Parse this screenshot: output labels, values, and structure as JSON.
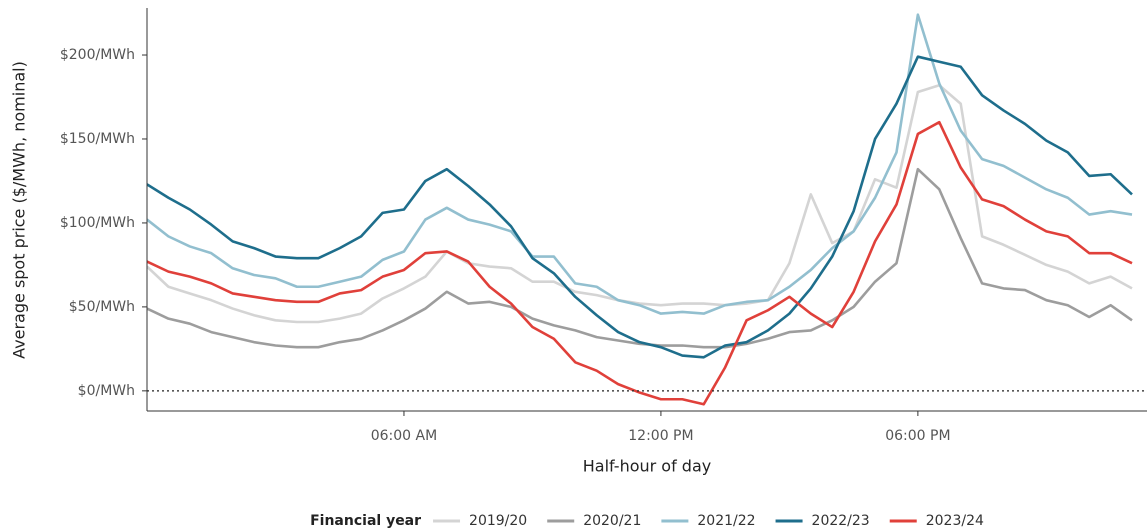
{
  "chart_data": {
    "type": "line",
    "x_label": "Half-hour of day",
    "y_label": "Average spot price ($/MWh, nominal)",
    "legend_title": "Financial year",
    "legend_position": "bottom",
    "x": [
      0,
      0.5,
      1,
      1.5,
      2,
      2.5,
      3,
      3.5,
      4,
      4.5,
      5,
      5.5,
      6,
      6.5,
      7,
      7.5,
      8,
      8.5,
      9,
      9.5,
      10,
      10.5,
      11,
      11.5,
      12,
      12.5,
      13,
      13.5,
      14,
      14.5,
      15,
      15.5,
      16,
      16.5,
      17,
      17.5,
      18,
      18.5,
      19,
      19.5,
      20,
      20.5,
      21,
      21.5,
      22,
      22.5,
      23
    ],
    "xlim": [
      0,
      23.35
    ],
    "xticks": [
      {
        "value": 6,
        "label": "06:00 AM"
      },
      {
        "value": 12,
        "label": "12:00 PM"
      },
      {
        "value": 18,
        "label": "06:00 PM"
      }
    ],
    "ylim": [
      -12,
      228
    ],
    "yticks": [
      {
        "value": 0,
        "label": "$0/MWh"
      },
      {
        "value": 50,
        "label": "$50/MWh"
      },
      {
        "value": 100,
        "label": "$100/MWh"
      },
      {
        "value": 150,
        "label": "$150/MWh"
      },
      {
        "value": 200,
        "label": "$200/MWh"
      }
    ],
    "zero_line": true,
    "series": [
      {
        "name": "2019/20",
        "color": "#d4d4d4",
        "values": [
          74,
          62,
          58,
          54,
          49,
          45,
          42,
          41,
          41,
          43,
          46,
          55,
          61,
          68,
          83,
          76,
          74,
          73,
          65,
          65,
          59,
          57,
          54,
          52,
          51,
          52,
          52,
          51,
          52,
          54,
          76,
          117,
          88,
          95,
          126,
          121,
          178,
          182,
          171,
          92,
          87,
          81,
          75,
          71,
          64,
          68,
          61
        ]
      },
      {
        "name": "2020/21",
        "color": "#9d9d9d",
        "values": [
          49,
          43,
          40,
          35,
          32,
          29,
          27,
          26,
          26,
          29,
          31,
          36,
          42,
          49,
          59,
          52,
          53,
          50,
          43,
          39,
          36,
          32,
          30,
          28,
          27,
          27,
          26,
          26,
          28,
          31,
          35,
          36,
          42,
          50,
          65,
          76,
          132,
          120,
          91,
          64,
          61,
          60,
          54,
          51,
          44,
          51,
          42
        ]
      },
      {
        "name": "2021/22",
        "color": "#92bfcf",
        "values": [
          102,
          92,
          86,
          82,
          73,
          69,
          67,
          62,
          62,
          65,
          68,
          78,
          83,
          102,
          109,
          102,
          99,
          95,
          80,
          80,
          64,
          62,
          54,
          51,
          46,
          47,
          46,
          51,
          53,
          54,
          62,
          72,
          85,
          95,
          115,
          142,
          224,
          183,
          155,
          138,
          134,
          127,
          120,
          115,
          105,
          107,
          105
        ]
      },
      {
        "name": "2022/23",
        "color": "#1e6e8c",
        "values": [
          123,
          115,
          108,
          99,
          89,
          85,
          80,
          79,
          79,
          85,
          92,
          106,
          108,
          125,
          132,
          122,
          111,
          98,
          79,
          70,
          56,
          45,
          35,
          29,
          26,
          21,
          20,
          27,
          29,
          36,
          46,
          61,
          80,
          107,
          150,
          171,
          199,
          196,
          193,
          176,
          167,
          159,
          149,
          142,
          128,
          129,
          117
        ]
      },
      {
        "name": "2023/24",
        "color": "#e0403a",
        "values": [
          77,
          71,
          68,
          64,
          58,
          56,
          54,
          53,
          53,
          58,
          60,
          68,
          72,
          82,
          83,
          77,
          62,
          52,
          38,
          31,
          17,
          12,
          4,
          -1,
          -5,
          -5,
          -8,
          14,
          42,
          48,
          56,
          46,
          38,
          59,
          89,
          111,
          153,
          160,
          133,
          114,
          110,
          102,
          95,
          92,
          82,
          82,
          76
        ]
      }
    ]
  }
}
